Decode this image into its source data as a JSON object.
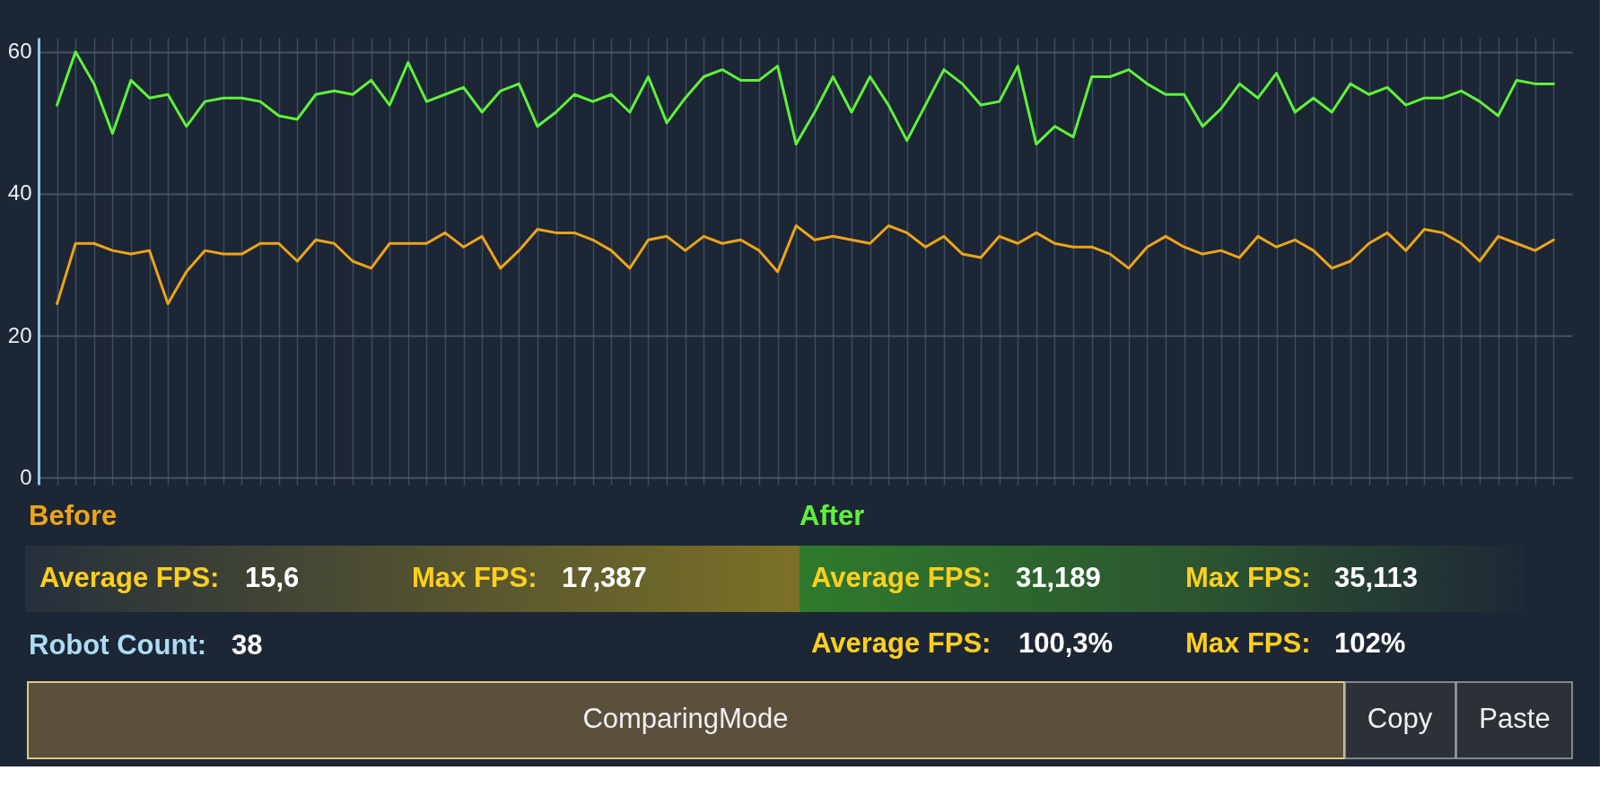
{
  "chart_data": {
    "type": "line",
    "categories": [
      null,
      null,
      null,
      null,
      null,
      null,
      null,
      null,
      null,
      null,
      null,
      null,
      null,
      null,
      null,
      null,
      null,
      null,
      null,
      null,
      null,
      null,
      null,
      null,
      null,
      null,
      null,
      null,
      null,
      null,
      null,
      null,
      null,
      null,
      null,
      null,
      null,
      null,
      null,
      null,
      null,
      null,
      null,
      null,
      null,
      null,
      null,
      null,
      null,
      null,
      null,
      null,
      null,
      null,
      null,
      null,
      null,
      null,
      null,
      null,
      null,
      null,
      null,
      null,
      null,
      null,
      null,
      null,
      null,
      null,
      null,
      null,
      null,
      null,
      null,
      null,
      null,
      null,
      null,
      null,
      null,
      null
    ],
    "series": [
      {
        "name": "Before",
        "color": "#eca419",
        "values": [
          24.5,
          33,
          33,
          32,
          31.5,
          32,
          24.5,
          29,
          32,
          31.5,
          31.5,
          33,
          33,
          30.5,
          33.5,
          33,
          30.5,
          29.5,
          33,
          33,
          33,
          34.5,
          32.5,
          34,
          29.5,
          32,
          35,
          34.5,
          34.5,
          33.5,
          32,
          29.5,
          33.5,
          34,
          32,
          34,
          33,
          33.5,
          32,
          29,
          35.5,
          33.5,
          34,
          33.5,
          33,
          35.5,
          34.5,
          32.5,
          34,
          31.5,
          31,
          34,
          33,
          34.5,
          33,
          32.5,
          32.5,
          31.5,
          29.5,
          32.5,
          34,
          32.5,
          31.5,
          32,
          31,
          34,
          32.5,
          33.5,
          32,
          29.5,
          30.5,
          33,
          34.5,
          32,
          35,
          34.5,
          33,
          30.5,
          34,
          33,
          32,
          33.5
        ]
      },
      {
        "name": "After",
        "color": "#5ef23a",
        "values": [
          52.5,
          60,
          55.5,
          48.5,
          56,
          53.5,
          54,
          49.5,
          53,
          53.5,
          53.5,
          53,
          51,
          50.5,
          54,
          54.5,
          54,
          56,
          52.5,
          58.5,
          53,
          54,
          55,
          51.5,
          54.5,
          55.5,
          49.5,
          51.5,
          54,
          53,
          54,
          51.5,
          56.5,
          50,
          53.5,
          56.5,
          57.5,
          56,
          56,
          58,
          47,
          51.5,
          56.5,
          51.5,
          56.5,
          52.5,
          47.5,
          52.5,
          57.5,
          55.5,
          52.5,
          53,
          58,
          47,
          49.5,
          48,
          56.5,
          56.5,
          57.5,
          55.5,
          54,
          54,
          49.5,
          52,
          55.5,
          53.5,
          57,
          51.5,
          53.5,
          51.5,
          55.5,
          54,
          55,
          52.5,
          53.5,
          53.5,
          54.5,
          53,
          51,
          56,
          55.5,
          55.5
        ]
      }
    ],
    "ylim": [
      -1,
      62
    ],
    "yticks": [
      0,
      20,
      40,
      60
    ],
    "grid": true,
    "annotations": [
      "Average FPS:",
      "15,6",
      "Max FPS:",
      "17,387",
      "Robot Count:",
      "38",
      "Average FPS:",
      "31,189",
      "Max FPS:",
      "35,113",
      "Average FPS:",
      "100,3%",
      "Max FPS:",
      "102%",
      "ComparingMode",
      "Copy",
      "Paste"
    ]
  }
}
